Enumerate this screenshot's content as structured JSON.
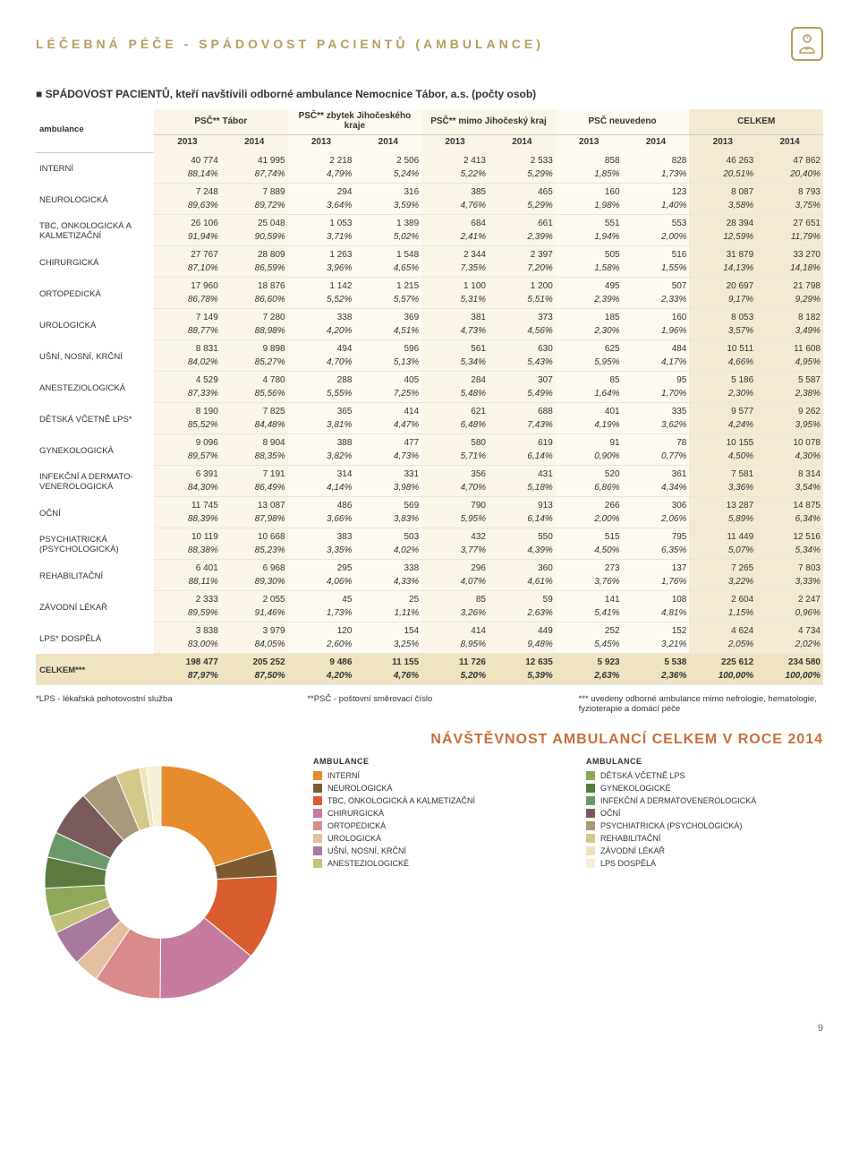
{
  "header": {
    "title": "LÉČEBNÁ PÉČE - SPÁDOVOST PACIENTŮ (AMBULANCE)"
  },
  "subtitle": "SPÁDOVOST PACIENTŮ, kteří navštívili odborné ambulance Nemocnice Tábor, a.s. (počty osob)",
  "table": {
    "col_label": "ambulance",
    "groups": [
      {
        "label": "PSČ** Tábor",
        "class": "col-tabor"
      },
      {
        "label": "PSČ** zbytek Jihočeského kraje",
        "class": "col-zbytek"
      },
      {
        "label": "PSČ** mimo Jihočeský kraj",
        "class": "col-mimo"
      },
      {
        "label": "PSČ neuvedeno",
        "class": "col-neuv"
      },
      {
        "label": "CELKEM",
        "class": "col-celk"
      }
    ],
    "years": [
      "2013",
      "2014"
    ],
    "rows": [
      {
        "label": "INTERNÍ",
        "vals": [
          "40 774",
          "41 995",
          "2 218",
          "2 506",
          "2 413",
          "2 533",
          "858",
          "828",
          "46 263",
          "47 862"
        ],
        "pcts": [
          "88,14%",
          "87,74%",
          "4,79%",
          "5,24%",
          "5,22%",
          "5,29%",
          "1,85%",
          "1,73%",
          "20,51%",
          "20,40%"
        ]
      },
      {
        "label": "NEUROLOGICKÁ",
        "vals": [
          "7 248",
          "7 889",
          "294",
          "316",
          "385",
          "465",
          "160",
          "123",
          "8 087",
          "8 793"
        ],
        "pcts": [
          "89,63%",
          "89,72%",
          "3,64%",
          "3,59%",
          "4,76%",
          "5,29%",
          "1,98%",
          "1,40%",
          "3,58%",
          "3,75%"
        ]
      },
      {
        "label": "TBC, ONKOLOGICKÁ A KALMETIZAČNÍ",
        "vals": [
          "26 106",
          "25 048",
          "1 053",
          "1 389",
          "684",
          "661",
          "551",
          "553",
          "28 394",
          "27 651"
        ],
        "pcts": [
          "91,94%",
          "90,59%",
          "3,71%",
          "5,02%",
          "2,41%",
          "2,39%",
          "1,94%",
          "2,00%",
          "12,59%",
          "11,79%"
        ]
      },
      {
        "label": "CHIRURGICKÁ",
        "vals": [
          "27 767",
          "28 809",
          "1 263",
          "1 548",
          "2 344",
          "2 397",
          "505",
          "516",
          "31 879",
          "33 270"
        ],
        "pcts": [
          "87,10%",
          "86,59%",
          "3,96%",
          "4,65%",
          "7,35%",
          "7,20%",
          "1,58%",
          "1,55%",
          "14,13%",
          "14,18%"
        ]
      },
      {
        "label": "ORTOPEDICKÁ",
        "vals": [
          "17 960",
          "18 876",
          "1 142",
          "1 215",
          "1 100",
          "1 200",
          "495",
          "507",
          "20 697",
          "21 798"
        ],
        "pcts": [
          "86,78%",
          "86,60%",
          "5,52%",
          "5,57%",
          "5,31%",
          "5,51%",
          "2,39%",
          "2,33%",
          "9,17%",
          "9,29%"
        ]
      },
      {
        "label": "UROLOGICKÁ",
        "vals": [
          "7 149",
          "7 280",
          "338",
          "369",
          "381",
          "373",
          "185",
          "160",
          "8 053",
          "8 182"
        ],
        "pcts": [
          "88,77%",
          "88,98%",
          "4,20%",
          "4,51%",
          "4,73%",
          "4,56%",
          "2,30%",
          "1,96%",
          "3,57%",
          "3,49%"
        ]
      },
      {
        "label": "UŠNÍ, NOSNÍ, KRČNÍ",
        "vals": [
          "8 831",
          "9 898",
          "494",
          "596",
          "561",
          "630",
          "625",
          "484",
          "10 511",
          "11 608"
        ],
        "pcts": [
          "84,02%",
          "85,27%",
          "4,70%",
          "5,13%",
          "5,34%",
          "5,43%",
          "5,95%",
          "4,17%",
          "4,66%",
          "4,95%"
        ]
      },
      {
        "label": "ANESTEZIOLOGICKÁ",
        "vals": [
          "4 529",
          "4 780",
          "288",
          "405",
          "284",
          "307",
          "85",
          "95",
          "5 186",
          "5 587"
        ],
        "pcts": [
          "87,33%",
          "85,56%",
          "5,55%",
          "7,25%",
          "5,48%",
          "5,49%",
          "1,64%",
          "1,70%",
          "2,30%",
          "2,38%"
        ]
      },
      {
        "label": "DĚTSKÁ VČETNĚ LPS*",
        "vals": [
          "8 190",
          "7 825",
          "365",
          "414",
          "621",
          "688",
          "401",
          "335",
          "9 577",
          "9 262"
        ],
        "pcts": [
          "85,52%",
          "84,48%",
          "3,81%",
          "4,47%",
          "6,48%",
          "7,43%",
          "4,19%",
          "3,62%",
          "4,24%",
          "3,95%"
        ]
      },
      {
        "label": "GYNEKOLOGICKÁ",
        "vals": [
          "9 096",
          "8 904",
          "388",
          "477",
          "580",
          "619",
          "91",
          "78",
          "10 155",
          "10 078"
        ],
        "pcts": [
          "89,57%",
          "88,35%",
          "3,82%",
          "4,73%",
          "5,71%",
          "6,14%",
          "0,90%",
          "0,77%",
          "4,50%",
          "4,30%"
        ]
      },
      {
        "label": "INFEKČNÍ A DERMATO-VENEROLOGICKÁ",
        "vals": [
          "6 391",
          "7 191",
          "314",
          "331",
          "356",
          "431",
          "520",
          "361",
          "7 581",
          "8 314"
        ],
        "pcts": [
          "84,30%",
          "86,49%",
          "4,14%",
          "3,98%",
          "4,70%",
          "5,18%",
          "6,86%",
          "4,34%",
          "3,36%",
          "3,54%"
        ]
      },
      {
        "label": "OČNÍ",
        "vals": [
          "11 745",
          "13 087",
          "486",
          "569",
          "790",
          "913",
          "266",
          "306",
          "13 287",
          "14 875"
        ],
        "pcts": [
          "88,39%",
          "87,98%",
          "3,66%",
          "3,83%",
          "5,95%",
          "6,14%",
          "2,00%",
          "2,06%",
          "5,89%",
          "6,34%"
        ]
      },
      {
        "label": "PSYCHIATRICKÁ (PSYCHOLOGICKÁ)",
        "vals": [
          "10 119",
          "10 668",
          "383",
          "503",
          "432",
          "550",
          "515",
          "795",
          "11 449",
          "12 516"
        ],
        "pcts": [
          "88,38%",
          "85,23%",
          "3,35%",
          "4,02%",
          "3,77%",
          "4,39%",
          "4,50%",
          "6,35%",
          "5,07%",
          "5,34%"
        ]
      },
      {
        "label": "REHABILITAČNÍ",
        "vals": [
          "6 401",
          "6 968",
          "295",
          "338",
          "296",
          "360",
          "273",
          "137",
          "7 265",
          "7 803"
        ],
        "pcts": [
          "88,11%",
          "89,30%",
          "4,06%",
          "4,33%",
          "4,07%",
          "4,61%",
          "3,76%",
          "1,76%",
          "3,22%",
          "3,33%"
        ]
      },
      {
        "label": "ZÁVODNÍ LÉKAŘ",
        "vals": [
          "2 333",
          "2 055",
          "45",
          "25",
          "85",
          "59",
          "141",
          "108",
          "2 604",
          "2 247"
        ],
        "pcts": [
          "89,59%",
          "91,46%",
          "1,73%",
          "1,11%",
          "3,26%",
          "2,63%",
          "5,41%",
          "4,81%",
          "1,15%",
          "0,96%"
        ]
      },
      {
        "label": "LPS* DOSPĚLÁ",
        "vals": [
          "3 838",
          "3 979",
          "120",
          "154",
          "414",
          "449",
          "252",
          "152",
          "4 624",
          "4 734"
        ],
        "pcts": [
          "83,00%",
          "84,05%",
          "2,60%",
          "3,25%",
          "8,95%",
          "9,48%",
          "5,45%",
          "3,21%",
          "2,05%",
          "2,02%"
        ]
      }
    ],
    "total": {
      "label": "CELKEM***",
      "vals": [
        "198 477",
        "205 252",
        "9 486",
        "11 155",
        "11 726",
        "12 635",
        "5 923",
        "5 538",
        "225 612",
        "234 580"
      ],
      "pcts": [
        "87,97%",
        "87,50%",
        "4,20%",
        "4,76%",
        "5,20%",
        "5,39%",
        "2,63%",
        "2,36%",
        "100,00%",
        "100,00%"
      ]
    }
  },
  "footnotes": {
    "a": "*LPS - lékařská pohotovostní služba",
    "b": "**PSČ - poštovní směrovací číslo",
    "c": "*** uvedeny odborné ambulance mimo nefrologie, hematologie, fyzioterapie a domácí péče"
  },
  "chart": {
    "title": "NÁVŠTĚVNOST AMBULANCÍ CELKEM V ROCE 2014",
    "type": "donut",
    "legend_head": "AMBULANCE",
    "slices": [
      {
        "label": "INTERNÍ",
        "value": 47862,
        "color": "#e68a2e"
      },
      {
        "label": "NEUROLOGICKÁ",
        "value": 8793,
        "color": "#7a5a2e"
      },
      {
        "label": "TBC, ONKOLOGICKÁ  A KALMETIZAČNÍ",
        "value": 27651,
        "color": "#d85c2e"
      },
      {
        "label": "CHIRURGICKÁ",
        "value": 33270,
        "color": "#c67a9e"
      },
      {
        "label": "ORTOPEDICKÁ",
        "value": 21798,
        "color": "#d98b8b"
      },
      {
        "label": "UROLOGICKÁ",
        "value": 8182,
        "color": "#e3bfa0"
      },
      {
        "label": "UŠNÍ, NOSNÍ, KRČNÍ",
        "value": 11608,
        "color": "#a87a9e"
      },
      {
        "label": "ANESTEZIOLOGICKÉ",
        "value": 5587,
        "color": "#c2c27a"
      },
      {
        "label": "DĚTSKÁ VČETNĚ LPS",
        "value": 9262,
        "color": "#8ea85a"
      },
      {
        "label": "GYNEKOLOGICKÉ",
        "value": 10078,
        "color": "#5a7a3e"
      },
      {
        "label": "INFEKČNÍ A DERMATOVENEROLOGICKÁ",
        "value": 8314,
        "color": "#6a9a6a"
      },
      {
        "label": "OČNÍ",
        "value": 14875,
        "color": "#7a5a5a"
      },
      {
        "label": "PSYCHIATRICKÁ (PSYCHOLOGICKÁ)",
        "value": 12516,
        "color": "#a8997a"
      },
      {
        "label": "REHABILITAČNÍ",
        "value": 7803,
        "color": "#d4c98a"
      },
      {
        "label": "ZÁVODNÍ LÉKAŘ",
        "value": 2247,
        "color": "#ede3b8"
      },
      {
        "label": "LPS DOSPĚLÁ",
        "value": 4734,
        "color": "#f5efd6"
      }
    ],
    "inner_radius": 0.48,
    "outer_radius": 1.0,
    "background": "#ffffff"
  },
  "pagenum": "9"
}
